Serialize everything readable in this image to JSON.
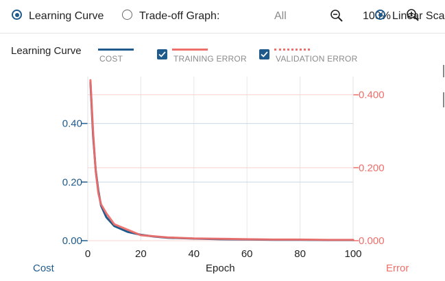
{
  "toolbar": {
    "mode_learning_curve": "Learning Curve",
    "mode_tradeoff": "Trade-off Graph:",
    "tradeoff_value": "All",
    "zoom_level": "100%",
    "scale_mode": "Linear Sca"
  },
  "legend": {
    "title": "Learning Curve",
    "cost": "COST",
    "training_error": "TRAINING ERROR",
    "validation_error": "VALIDATION ERROR"
  },
  "colors": {
    "cost": "#1f5a8c",
    "error": "#ee6e6a",
    "accent": "#1f5a8c"
  },
  "chart_data": {
    "type": "line",
    "xlabel": "Epoch",
    "y_left_label": "Cost",
    "y_right_label": "Error",
    "xlim": [
      0,
      100
    ],
    "y_left_lim": [
      0,
      0.56
    ],
    "y_right_lim": [
      0,
      0.45
    ],
    "x_ticks": [
      0,
      20,
      40,
      60,
      80,
      100
    ],
    "y_left_ticks": [
      "0.00",
      "0.20",
      "0.40"
    ],
    "y_right_ticks": [
      "0.000",
      "0.200",
      "0.400"
    ],
    "series": [
      {
        "name": "COST",
        "axis": "left",
        "x": [
          1,
          2,
          3,
          4,
          5,
          7,
          10,
          15,
          20,
          25,
          30,
          40,
          50,
          60,
          70,
          80,
          90,
          100
        ],
        "values": [
          0.54,
          0.36,
          0.24,
          0.17,
          0.12,
          0.08,
          0.05,
          0.03,
          0.02,
          0.014,
          0.01,
          0.007,
          0.005,
          0.004,
          0.003,
          0.003,
          0.002,
          0.002
        ]
      },
      {
        "name": "TRAINING ERROR",
        "axis": "right",
        "x": [
          1,
          2,
          3,
          4,
          5,
          7,
          10,
          15,
          20,
          25,
          30,
          40,
          50,
          60,
          70,
          80,
          90,
          100
        ],
        "values": [
          0.44,
          0.3,
          0.19,
          0.13,
          0.1,
          0.075,
          0.045,
          0.03,
          0.015,
          0.012,
          0.009,
          0.006,
          0.005,
          0.004,
          0.003,
          0.003,
          0.002,
          0.002
        ]
      }
    ]
  }
}
